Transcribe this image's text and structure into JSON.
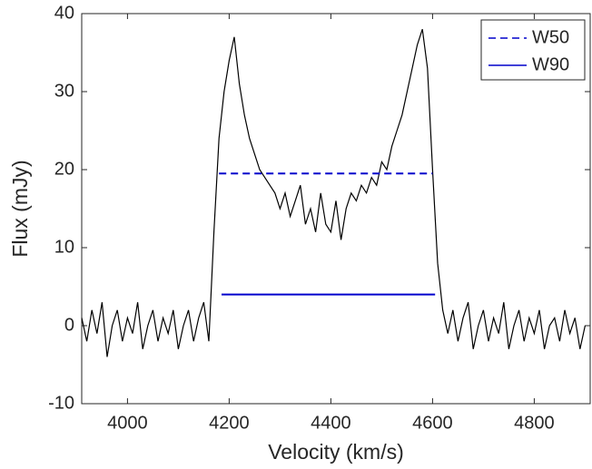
{
  "chart_data": {
    "type": "line",
    "xlabel": "Velocity (km/s)",
    "ylabel": "Flux (mJy)",
    "xlim": [
      3910,
      4910
    ],
    "ylim": [
      -10,
      40
    ],
    "xticks": [
      4000,
      4200,
      4400,
      4600,
      4800
    ],
    "yticks": [
      -10,
      0,
      10,
      20,
      30,
      40
    ],
    "legend": "upper right",
    "spectrum": {
      "color": "#000000",
      "x": [
        3910,
        3920,
        3930,
        3940,
        3950,
        3960,
        3970,
        3980,
        3990,
        4000,
        4010,
        4020,
        4030,
        4040,
        4050,
        4060,
        4070,
        4080,
        4090,
        4100,
        4110,
        4120,
        4130,
        4140,
        4150,
        4160,
        4170,
        4180,
        4190,
        4200,
        4210,
        4220,
        4230,
        4240,
        4250,
        4260,
        4270,
        4280,
        4290,
        4300,
        4310,
        4320,
        4330,
        4340,
        4350,
        4360,
        4370,
        4380,
        4390,
        4400,
        4410,
        4420,
        4430,
        4440,
        4450,
        4460,
        4470,
        4480,
        4490,
        4500,
        4510,
        4520,
        4530,
        4540,
        4550,
        4560,
        4570,
        4580,
        4590,
        4600,
        4610,
        4620,
        4630,
        4640,
        4650,
        4660,
        4670,
        4680,
        4690,
        4700,
        4710,
        4720,
        4730,
        4740,
        4750,
        4760,
        4770,
        4780,
        4790,
        4800,
        4810,
        4820,
        4830,
        4840,
        4850,
        4860,
        4870,
        4880,
        4890,
        4900
      ],
      "values": [
        1,
        -2,
        2,
        -1,
        3,
        -4,
        0,
        2,
        -2,
        1,
        -1,
        3,
        -3,
        0,
        2,
        -2,
        1,
        -1,
        2,
        -3,
        0,
        2,
        -2,
        1,
        3,
        -2,
        12,
        24,
        30,
        34,
        37,
        31,
        27,
        24,
        22,
        20,
        19,
        18,
        17,
        15,
        17,
        14,
        16,
        18,
        13,
        15,
        12,
        17,
        13,
        12,
        16,
        11,
        15,
        17,
        16,
        18,
        17,
        19,
        18,
        21,
        20,
        23,
        25,
        27,
        30,
        33,
        36,
        38,
        33,
        20,
        8,
        2,
        -1,
        2,
        -2,
        1,
        3,
        -3,
        0,
        2,
        -2,
        1,
        -1,
        3,
        -3,
        0,
        2,
        -2,
        1,
        -1,
        2,
        -3,
        0,
        1,
        -2,
        2,
        -1,
        1,
        -3,
        0
      ]
    },
    "lines": [
      {
        "name": "W50",
        "color": "#0000cc",
        "style": "dashed",
        "x": [
          4180,
          4600
        ],
        "y": 19.5
      },
      {
        "name": "W90",
        "color": "#0000cc",
        "style": "solid",
        "x": [
          4185,
          4605
        ],
        "y": 4
      }
    ]
  }
}
